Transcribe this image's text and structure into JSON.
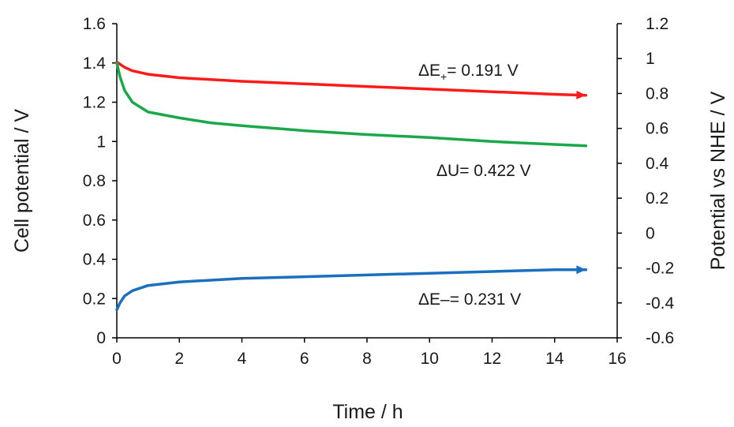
{
  "chart_data": {
    "type": "line",
    "grid": false,
    "legend": "none",
    "xlabel": "Time / h",
    "ylabel": "Cell potential / V",
    "y2label": "Potential vs NHE / V",
    "xlim": [
      0,
      16
    ],
    "ylim": [
      0,
      1.6
    ],
    "y2lim": [
      -0.6,
      1.2
    ],
    "x_ticks": [
      "0",
      "2",
      "4",
      "6",
      "8",
      "10",
      "12",
      "14",
      "16"
    ],
    "y_ticks": [
      "0",
      "0.2",
      "0.4",
      "0.6",
      "0.8",
      "1",
      "1.2",
      "1.4",
      "1.6"
    ],
    "y2_ticks": [
      "-0.6",
      "-0.4",
      "-0.2",
      "0",
      "0.2",
      "0.4",
      "0.6",
      "0.8",
      "1",
      "1.2"
    ],
    "series": [
      {
        "axis": "right",
        "color": "#ff1a1a",
        "arrow": "right",
        "x": [
          0,
          0.25,
          0.5,
          1,
          2,
          3,
          4,
          6,
          8,
          10,
          12,
          14,
          15
        ],
        "y": [
          0.98,
          0.95,
          0.93,
          0.91,
          0.89,
          0.88,
          0.87,
          0.855,
          0.84,
          0.825,
          0.81,
          0.795,
          0.79
        ]
      },
      {
        "axis": "left",
        "color": "#1aa84a",
        "arrow": "none",
        "x": [
          0,
          0.1,
          0.25,
          0.5,
          1,
          2,
          3,
          4,
          6,
          8,
          10,
          12,
          14,
          15
        ],
        "y": [
          1.4,
          1.33,
          1.26,
          1.2,
          1.15,
          1.12,
          1.095,
          1.08,
          1.055,
          1.035,
          1.02,
          1.0,
          0.985,
          0.978
        ]
      },
      {
        "axis": "right",
        "color": "#1a6fbf",
        "arrow": "right",
        "x": [
          0,
          0.1,
          0.25,
          0.5,
          1,
          2,
          3,
          4,
          6,
          8,
          10,
          12,
          14,
          15
        ],
        "y": [
          -0.44,
          -0.4,
          -0.36,
          -0.33,
          -0.3,
          -0.28,
          -0.27,
          -0.26,
          -0.25,
          -0.24,
          -0.23,
          -0.22,
          -0.21,
          -0.21
        ]
      }
    ],
    "annotations": [
      {
        "label": "ΔE",
        "sub": "+",
        "value": "= 0.191 V",
        "color": "#ff1a1a"
      },
      {
        "label": "ΔU",
        "sub": "",
        "value": "= 0.422 V",
        "color": "#1aa84a"
      },
      {
        "label": "ΔE",
        "sub": "–",
        "value": "= 0.231 V",
        "color": "#1a6fbf"
      }
    ]
  }
}
